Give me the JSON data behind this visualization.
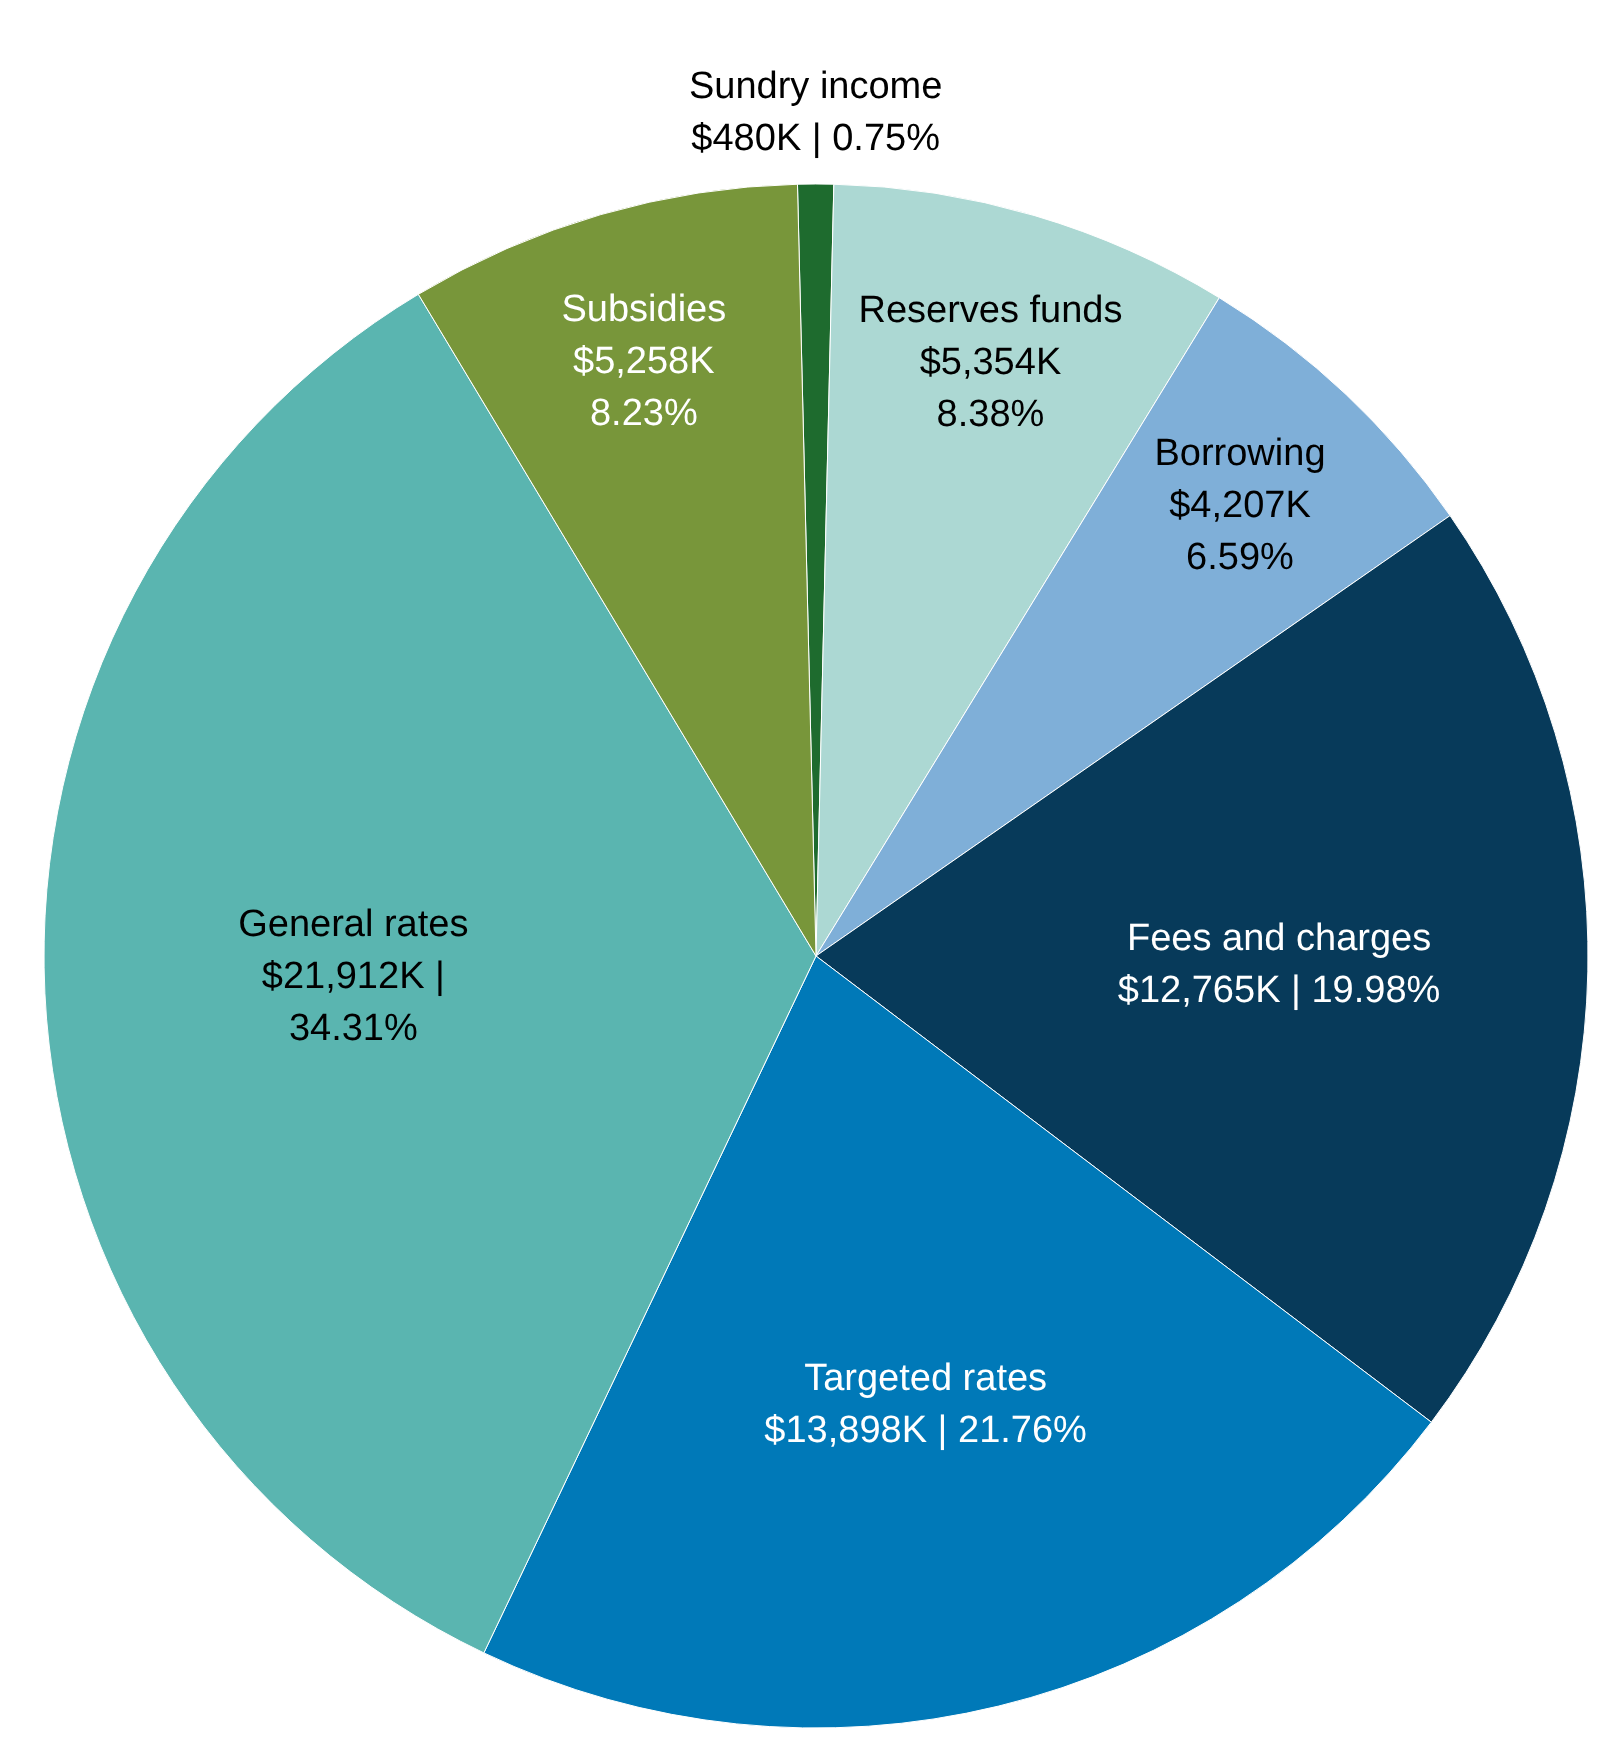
{
  "chart_data": {
    "type": "pie",
    "categories": [
      "Sundry income",
      "Reserves funds",
      "Borrowing",
      "Fees and charges",
      "Targeted rates",
      "General rates",
      "Subsidies"
    ],
    "values": [
      0.75,
      8.38,
      6.59,
      19.98,
      21.76,
      34.31,
      8.23
    ],
    "colors": [
      "#1e6b2e",
      "#acd8d3",
      "#7fafd8",
      "#073a5a",
      "#0079b8",
      "#5ab5b0",
      "#78963a"
    ],
    "value_labels": [
      "$480K | 0.75%",
      "$5,354K\n8.38%",
      "$4,207K\n6.59%",
      "$12,765K | 19.98%",
      "$13,898K | 21.76%",
      "$21,912K |\n34.31%",
      "$5,258K\n8.23%"
    ]
  }
}
